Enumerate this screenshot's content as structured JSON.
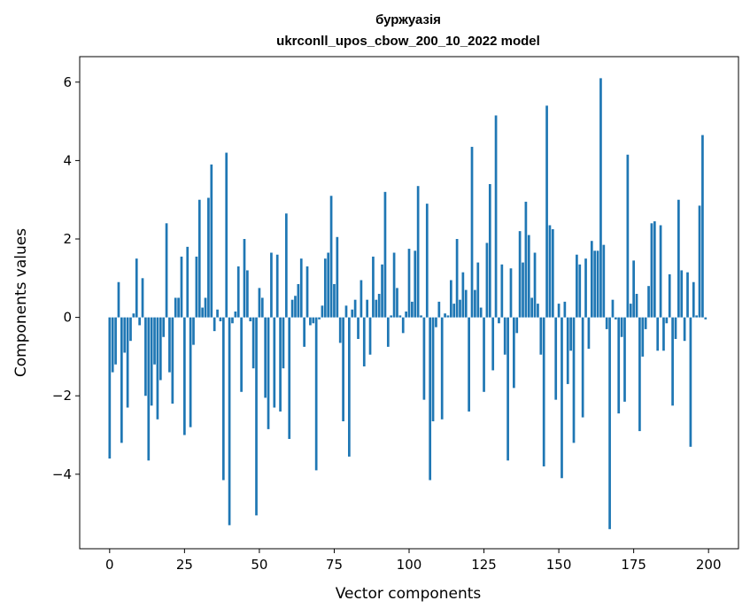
{
  "chart_data": {
    "type": "bar",
    "title_line1": "буржуазія",
    "title_line2": "ukrconll_upos_cbow_200_10_2022 model",
    "xlabel": "Vector components",
    "ylabel": "Components values",
    "xlim": [
      -10,
      210
    ],
    "ylim": [
      -5.9,
      6.65
    ],
    "xticks": [
      0,
      25,
      50,
      75,
      100,
      125,
      150,
      175,
      200
    ],
    "yticks": [
      -4,
      -2,
      0,
      2,
      4,
      6
    ],
    "bar_color": "#1f77b4",
    "grid": false,
    "values": [
      -3.6,
      -1.4,
      -1.2,
      0.9,
      -3.2,
      -0.9,
      -2.3,
      -0.6,
      0.1,
      1.5,
      -0.2,
      1.0,
      -2.0,
      -3.65,
      -2.25,
      -1.2,
      -2.6,
      -1.6,
      -0.5,
      2.4,
      -1.4,
      -2.2,
      0.5,
      0.5,
      1.55,
      -3.0,
      1.8,
      -2.8,
      -0.7,
      1.55,
      3.0,
      0.25,
      0.5,
      3.05,
      3.9,
      -0.35,
      0.2,
      -0.1,
      -4.15,
      4.2,
      -5.3,
      -0.15,
      0.15,
      1.3,
      -1.9,
      2.0,
      1.2,
      -0.1,
      -1.3,
      -5.05,
      0.75,
      0.5,
      -2.05,
      -2.85,
      1.65,
      -2.3,
      1.6,
      -2.4,
      -1.3,
      2.65,
      -3.1,
      0.45,
      0.55,
      0.85,
      1.5,
      -0.75,
      1.3,
      -0.2,
      -0.15,
      -3.9,
      -0.05,
      0.3,
      1.5,
      1.65,
      3.1,
      0.85,
      2.05,
      -0.65,
      -2.65,
      0.3,
      -3.55,
      0.2,
      0.45,
      -0.55,
      0.95,
      -1.25,
      0.45,
      -0.95,
      1.55,
      0.45,
      0.6,
      1.35,
      3.2,
      -0.75,
      0.05,
      1.65,
      0.75,
      0.05,
      -0.4,
      0.15,
      1.75,
      0.4,
      1.7,
      3.35,
      0.05,
      -2.1,
      2.9,
      -4.15,
      -2.65,
      -0.25,
      0.4,
      -2.6,
      0.1,
      0.05,
      0.95,
      0.35,
      2.0,
      0.45,
      1.15,
      0.7,
      -2.4,
      4.35,
      0.7,
      1.4,
      0.25,
      -1.9,
      1.9,
      3.4,
      -1.35,
      5.15,
      -0.15,
      1.35,
      -0.95,
      -3.65,
      1.25,
      -1.8,
      -0.4,
      2.2,
      1.4,
      2.95,
      2.1,
      0.5,
      1.65,
      0.35,
      -0.95,
      -3.8,
      5.4,
      2.35,
      2.25,
      -2.1,
      0.35,
      -4.1,
      0.4,
      -1.7,
      -0.85,
      -3.2,
      1.6,
      1.35,
      -2.55,
      1.5,
      -0.8,
      1.95,
      1.7,
      1.7,
      6.1,
      1.85,
      -0.3,
      -5.4,
      0.45,
      -0.05,
      -2.45,
      -0.5,
      -2.15,
      4.15,
      0.35,
      1.45,
      0.6,
      -2.9,
      -1.0,
      -0.3,
      0.8,
      2.4,
      2.45,
      -0.85,
      2.35,
      -0.85,
      -0.15,
      1.1,
      -2.25,
      -0.55,
      3.0,
      1.2,
      -0.6,
      1.15,
      -3.3,
      0.9,
      0.05,
      2.85,
      4.65,
      -0.05
    ]
  }
}
